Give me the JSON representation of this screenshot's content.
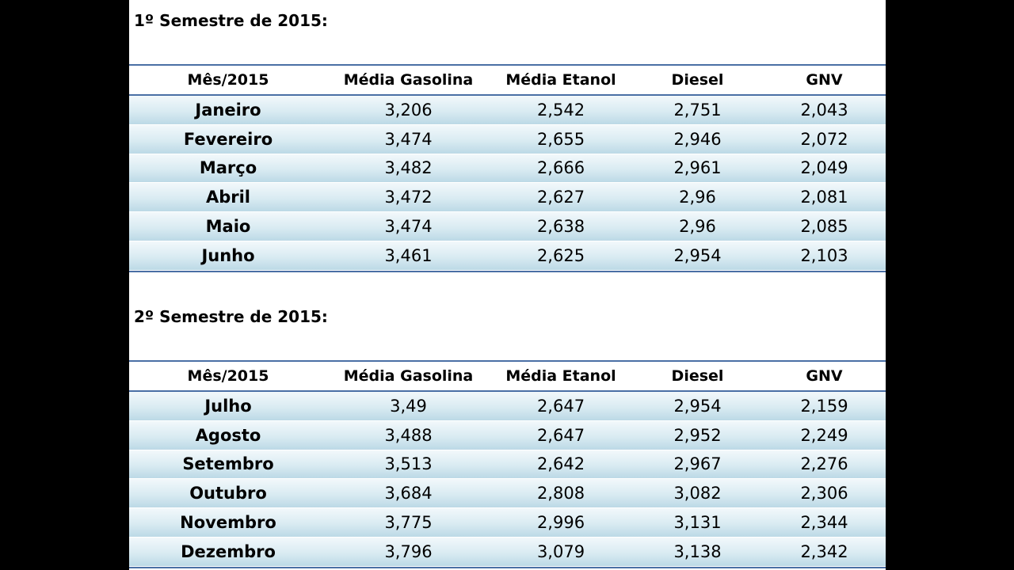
{
  "columns": [
    "Mês/2015",
    "Média Gasolina",
    "Média Etanol",
    "Diesel",
    "GNV"
  ],
  "semester1": {
    "title": "1º Semestre de 2015:",
    "rows": [
      {
        "month": "Janeiro",
        "gasolina": "3,206",
        "etanol": "2,542",
        "diesel": "2,751",
        "gnv": "2,043"
      },
      {
        "month": "Fevereiro",
        "gasolina": "3,474",
        "etanol": "2,655",
        "diesel": "2,946",
        "gnv": "2,072"
      },
      {
        "month": "Março",
        "gasolina": "3,482",
        "etanol": "2,666",
        "diesel": "2,961",
        "gnv": "2,049"
      },
      {
        "month": "Abril",
        "gasolina": "3,472",
        "etanol": "2,627",
        "diesel": "2,96",
        "gnv": "2,081"
      },
      {
        "month": "Maio",
        "gasolina": "3,474",
        "etanol": "2,638",
        "diesel": "2,96",
        "gnv": "2,085"
      },
      {
        "month": "Junho",
        "gasolina": "3,461",
        "etanol": "2,625",
        "diesel": "2,954",
        "gnv": "2,103"
      }
    ]
  },
  "semester2": {
    "title": "2º Semestre de 2015:",
    "rows": [
      {
        "month": "Julho",
        "gasolina": "3,49",
        "etanol": "2,647",
        "diesel": "2,954",
        "gnv": "2,159"
      },
      {
        "month": "Agosto",
        "gasolina": "3,488",
        "etanol": "2,647",
        "diesel": "2,952",
        "gnv": "2,249"
      },
      {
        "month": "Setembro",
        "gasolina": "3,513",
        "etanol": "2,642",
        "diesel": "2,967",
        "gnv": "2,276"
      },
      {
        "month": "Outubro",
        "gasolina": "3,684",
        "etanol": "2,808",
        "diesel": "3,082",
        "gnv": "2,306"
      },
      {
        "month": "Novembro",
        "gasolina": "3,775",
        "etanol": "2,996",
        "diesel": "3,131",
        "gnv": "2,344"
      },
      {
        "month": "Dezembro",
        "gasolina": "3,796",
        "etanol": "3,079",
        "diesel": "3,138",
        "gnv": "2,342"
      }
    ]
  }
}
